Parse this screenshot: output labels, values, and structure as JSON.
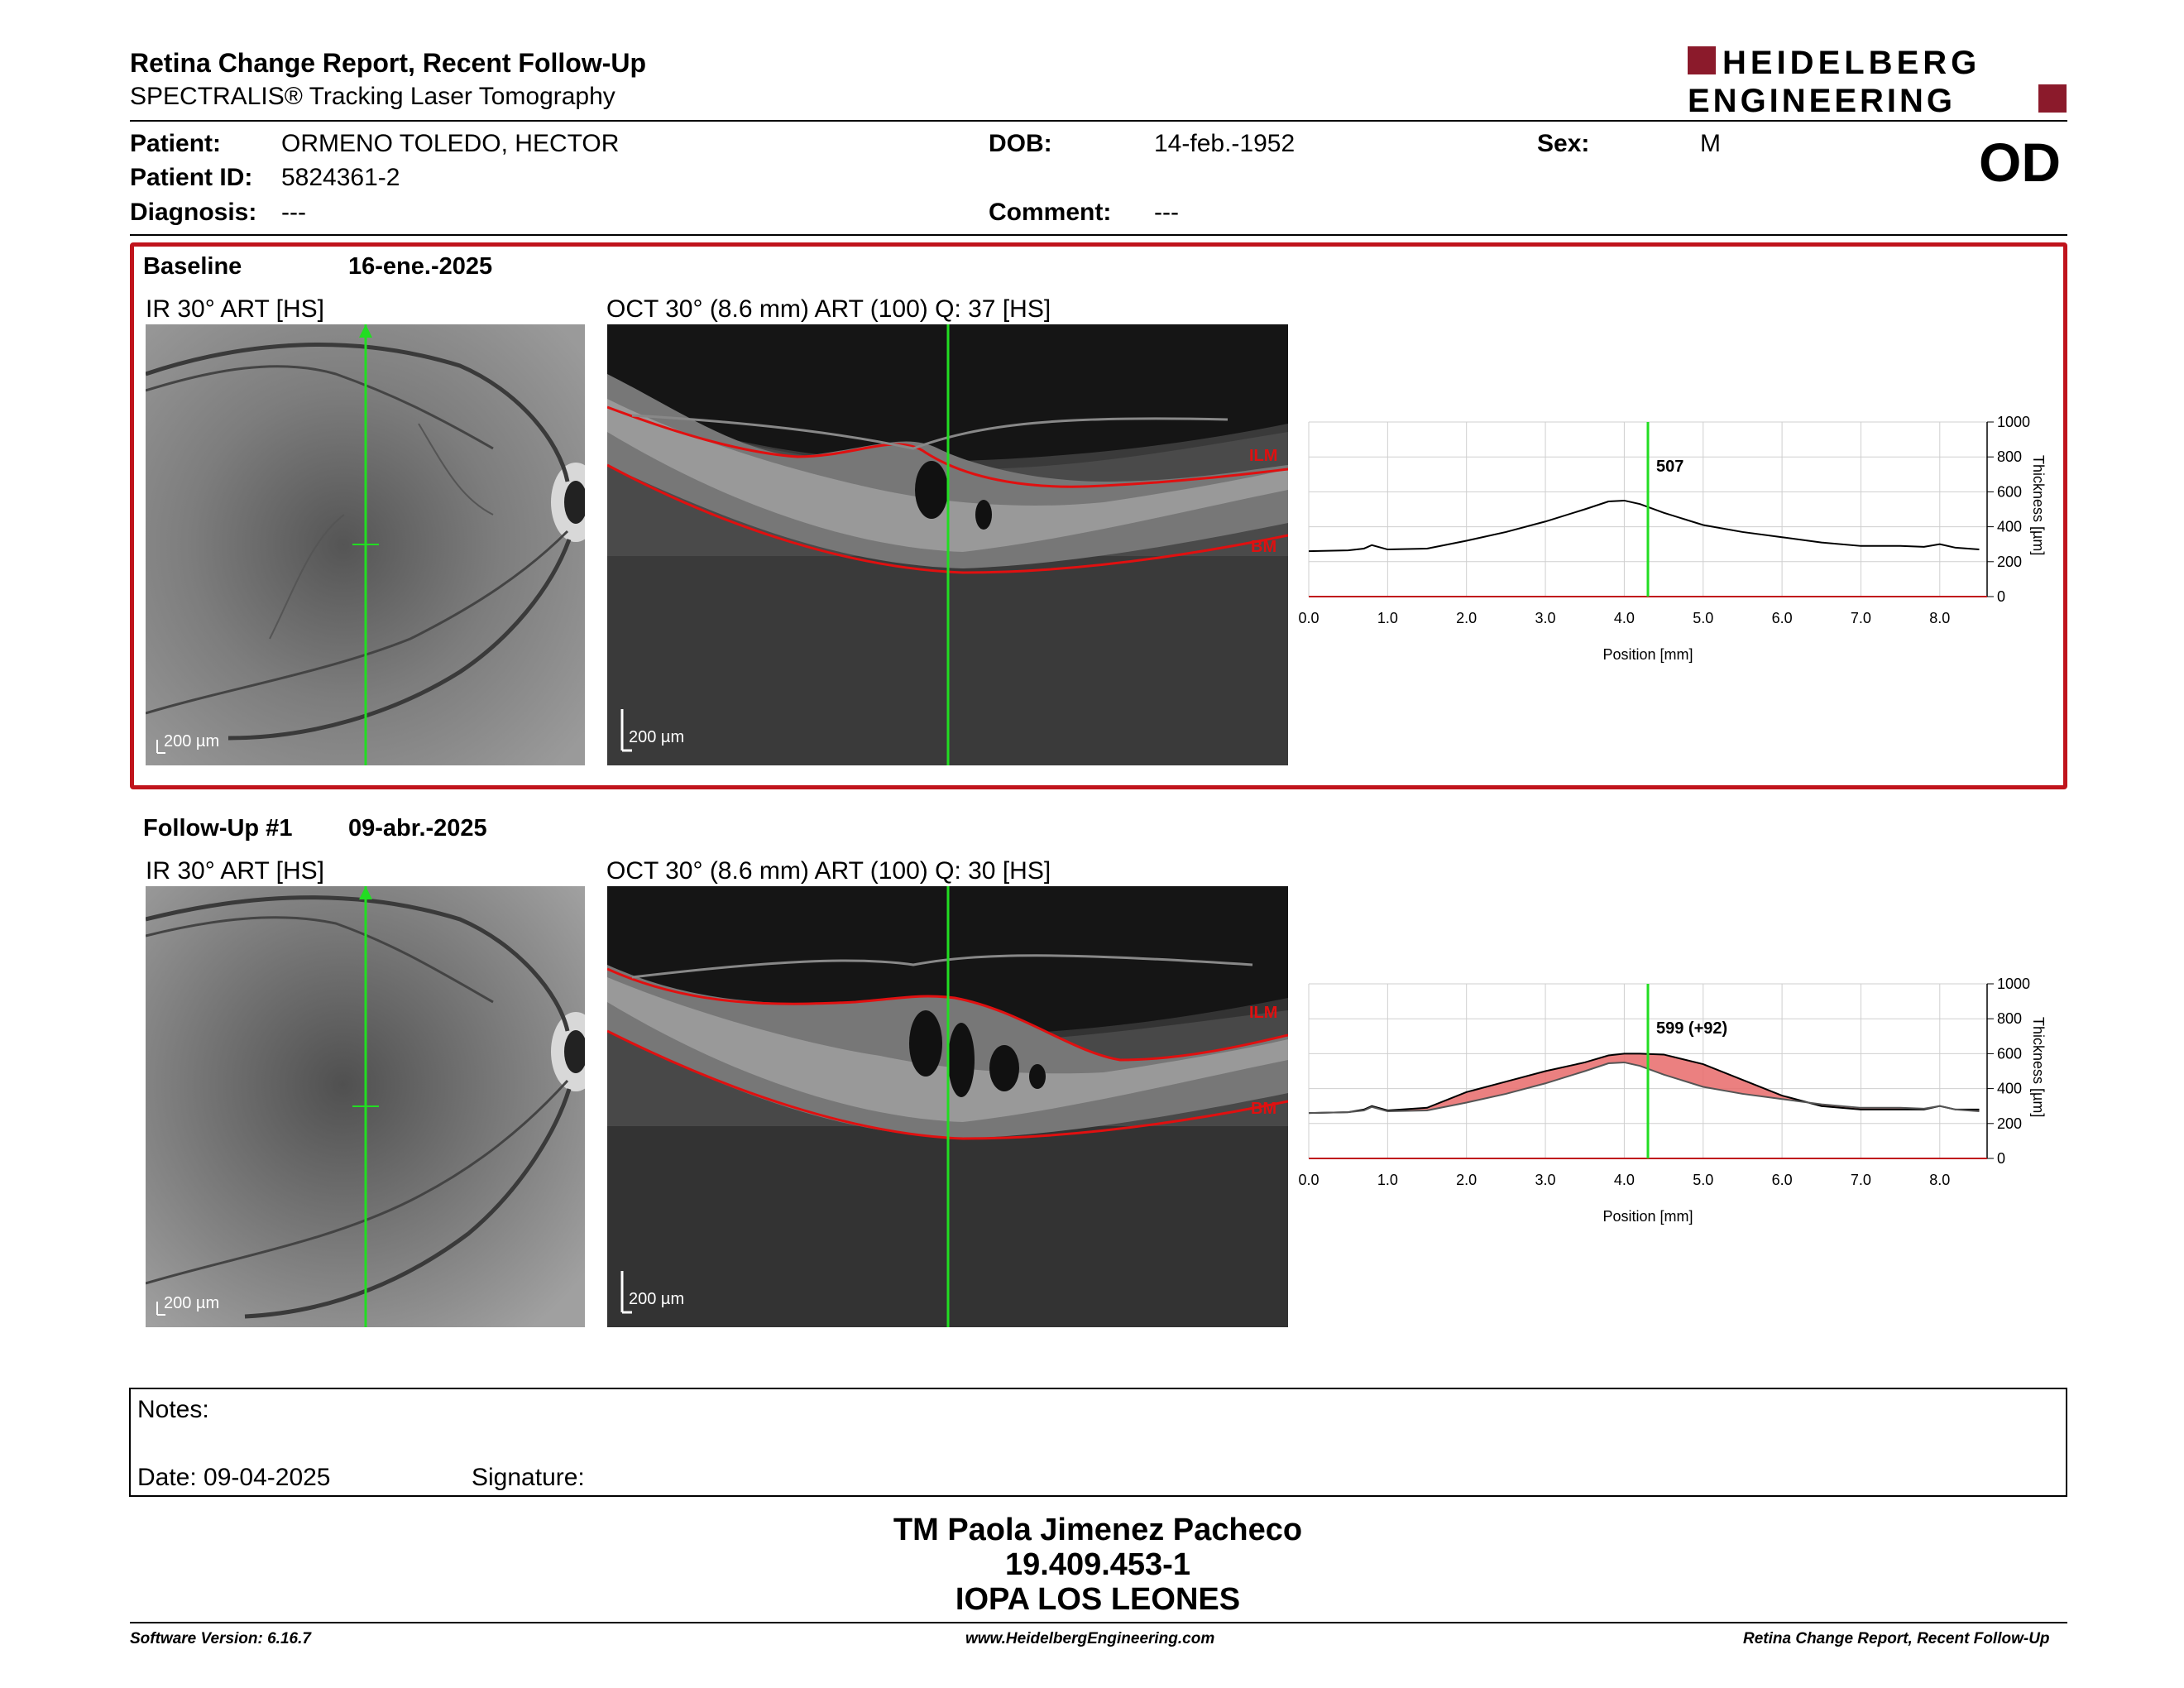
{
  "header": {
    "title": "Retina Change Report, Recent Follow-Up",
    "subtitle": "SPECTRALIS® Tracking Laser Tomography",
    "logo_line1": "HEIDELBERG",
    "logo_line2": "ENGINEERING",
    "brand_color": "#8b1a2b"
  },
  "patient": {
    "patient_label": "Patient:",
    "patient_value": "ORMENO TOLEDO, HECTOR",
    "id_label": "Patient ID:",
    "id_value": "5824361-2",
    "diagnosis_label": "Diagnosis:",
    "diagnosis_value": "---",
    "dob_label": "DOB:",
    "dob_value": "14-feb.-1952",
    "comment_label": "Comment:",
    "comment_value": "---",
    "sex_label": "Sex:",
    "sex_value": "M",
    "eye": "OD"
  },
  "baseline": {
    "label": "Baseline",
    "date": "16-ene.-2025",
    "ir_title": "IR 30° ART [HS]",
    "oct_title": "OCT 30° (8.6 mm) ART (100) Q: 37 [HS]",
    "scale": "200 µm",
    "ilm": "ILM",
    "bm": "BM",
    "box_color": "#c0141c"
  },
  "followup": {
    "label": "Follow-Up #1",
    "date": "09-abr.-2025",
    "ir_title": "IR 30° ART [HS]",
    "oct_title": "OCT 30° (8.6 mm) ART (100) Q: 30 [HS]",
    "scale": "200 µm",
    "ilm": "ILM",
    "bm": "BM"
  },
  "chart_data": [
    {
      "type": "line",
      "xlabel": "Position [mm]",
      "ylabel": "Thickness [µm]",
      "xlim": [
        0,
        8.6
      ],
      "ylim": [
        0,
        1000
      ],
      "x_ticks": [
        "0.0",
        "1.0",
        "2.0",
        "3.0",
        "4.0",
        "5.0",
        "6.0",
        "7.0",
        "8.0"
      ],
      "y_ticks": [
        "0",
        "200",
        "400",
        "600",
        "800",
        "1000"
      ],
      "grid": true,
      "marker_x": 4.3,
      "marker_label": "507",
      "series": [
        {
          "x": [
            0,
            0.5,
            0.7,
            0.8,
            1.0,
            1.5,
            2.0,
            2.5,
            3.0,
            3.5,
            3.8,
            4.0,
            4.2,
            4.5,
            5.0,
            5.5,
            6.0,
            6.5,
            7.0,
            7.5,
            7.8,
            8.0,
            8.2,
            8.5
          ],
          "values": [
            260,
            265,
            275,
            295,
            270,
            275,
            320,
            370,
            430,
            500,
            545,
            550,
            530,
            480,
            410,
            370,
            340,
            310,
            290,
            290,
            285,
            300,
            280,
            270
          ]
        }
      ]
    },
    {
      "type": "area",
      "xlabel": "Position [mm]",
      "ylabel": "Thickness [µm]",
      "xlim": [
        0,
        8.6
      ],
      "ylim": [
        0,
        1000
      ],
      "x_ticks": [
        "0.0",
        "1.0",
        "2.0",
        "3.0",
        "4.0",
        "5.0",
        "6.0",
        "7.0",
        "8.0"
      ],
      "y_ticks": [
        "0",
        "200",
        "400",
        "600",
        "800",
        "1000"
      ],
      "grid": true,
      "marker_x": 4.3,
      "marker_label": "599 (+92)",
      "series": [
        {
          "x": [
            0,
            0.5,
            0.7,
            0.8,
            1.0,
            1.5,
            2.0,
            2.5,
            3.0,
            3.5,
            3.8,
            4.0,
            4.2,
            4.5,
            5.0,
            5.5,
            6.0,
            6.5,
            7.0,
            7.5,
            7.8,
            8.0,
            8.2,
            8.5
          ],
          "values": [
            260,
            265,
            280,
            300,
            275,
            290,
            380,
            440,
            500,
            550,
            590,
            600,
            600,
            595,
            540,
            450,
            360,
            300,
            280,
            280,
            280,
            300,
            280,
            280
          ]
        },
        {
          "x": [
            0,
            0.5,
            0.7,
            0.8,
            1.0,
            1.5,
            2.0,
            2.5,
            3.0,
            3.5,
            3.8,
            4.0,
            4.2,
            4.5,
            5.0,
            5.5,
            6.0,
            6.5,
            7.0,
            7.5,
            7.8,
            8.0,
            8.2,
            8.5
          ],
          "values": [
            260,
            265,
            275,
            295,
            270,
            275,
            320,
            370,
            430,
            500,
            545,
            550,
            530,
            480,
            410,
            370,
            340,
            310,
            290,
            290,
            285,
            300,
            280,
            270
          ]
        }
      ],
      "fill_color": "#e86a6a"
    }
  ],
  "notes": {
    "notes_label": "Notes:",
    "date_label": "Date: 09-04-2025",
    "signature_label": "Signature:"
  },
  "signature": {
    "name": "TM Paola Jimenez Pacheco",
    "rut": "19.409.453-1",
    "place": "IOPA LOS LEONES"
  },
  "footer": {
    "version": "Software Version: 6.16.7",
    "url": "www.HeidelbergEngineering.com",
    "report": "Retina Change Report, Recent Follow-Up"
  }
}
